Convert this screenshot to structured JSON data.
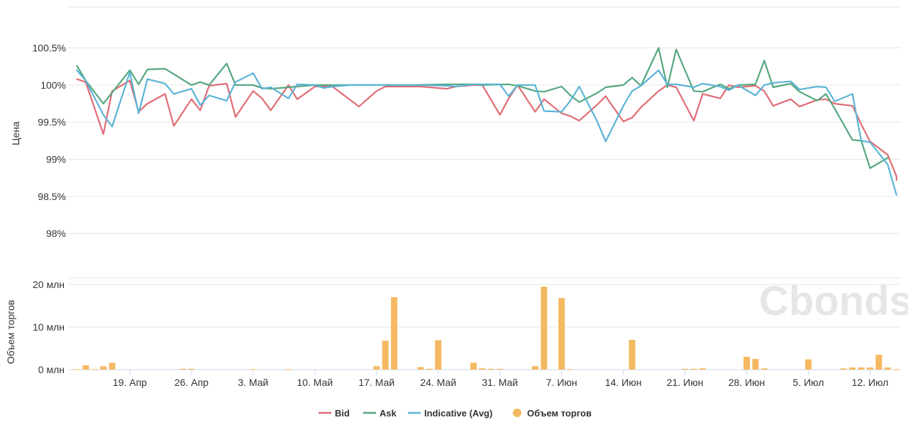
{
  "watermark": "Cbonds",
  "colors": {
    "bid": "#e06c75",
    "ask": "#55a77f",
    "indicative": "#5ab4d6",
    "volume": "#f5b961",
    "grid": "#e6e6e6"
  },
  "chart_data": [
    {
      "type": "line",
      "ylabel": "Цена",
      "ytick_labels": [
        "100.5%",
        "100%",
        "99.5%",
        "99%",
        "98.5%",
        "98%"
      ],
      "yticks": [
        100.5,
        100,
        99.5,
        99,
        98.5,
        98
      ],
      "ylim": [
        97.4,
        101.05
      ],
      "xtick_labels": [
        "19. Апр",
        "26. Апр",
        "3. Май",
        "10. Май",
        "17. Май",
        "24. Май",
        "31. Май",
        "7. Июн",
        "14. Июн",
        "21. Июн",
        "28. Июн",
        "5. Июл",
        "12. Июл"
      ],
      "xtick_days": [
        19,
        26,
        33,
        40,
        47,
        54,
        61,
        68,
        75,
        82,
        89,
        96,
        103
      ],
      "x_days": [
        13,
        14,
        16,
        17,
        19,
        20,
        21,
        23,
        24,
        26,
        27,
        28,
        30,
        31,
        33,
        34,
        35,
        37,
        38,
        40,
        41,
        42,
        44,
        45,
        47,
        48,
        49,
        51,
        52,
        54,
        55,
        56,
        58,
        59,
        61,
        62,
        63,
        65,
        66,
        68,
        69,
        70,
        72,
        73,
        75,
        76,
        77,
        79,
        80,
        81,
        83,
        84,
        86,
        87,
        88,
        90,
        91,
        92,
        94,
        95,
        97,
        98,
        99,
        101,
        102,
        103,
        105,
        106
      ],
      "series": [
        {
          "name": "Bid",
          "values": [
            100.08,
            100.04,
            99.34,
            99.92,
            100.06,
            99.64,
            99.75,
            99.88,
            99.45,
            99.81,
            99.66,
            99.99,
            100.02,
            99.57,
            99.92,
            99.82,
            99.66,
            100.0,
            99.81,
            99.98,
            99.98,
            99.71,
            99.92,
            99.98,
            99.98,
            99.95,
            99.98,
            100.0,
            100.0,
            99.6,
            99.82,
            100.0,
            99.64,
            99.81,
            99.62,
            99.58,
            99.52,
            99.73,
            99.85,
            99.51,
            99.56,
            99.7,
            99.92,
            100.0,
            99.97,
            99.52,
            99.88,
            99.82,
            100.0,
            99.97,
            99.99,
            99.92,
            99.72,
            99.81,
            99.71,
            99.8,
            99.81,
            99.75,
            99.72,
            99.47,
            99.24,
            99.06,
            98.77,
            98.72
          ],
          "x_indices": [
            0,
            1,
            2,
            3,
            4,
            5,
            6,
            7,
            8,
            9,
            10,
            11,
            12,
            13,
            14,
            15,
            16,
            17,
            18,
            19,
            21,
            23,
            24,
            25,
            28,
            30,
            31,
            32,
            33,
            34,
            35,
            36,
            37,
            38,
            39,
            40,
            41,
            42,
            43,
            44,
            45,
            46,
            47,
            48,
            49,
            50,
            51,
            52,
            53,
            54,
            55,
            56,
            57,
            58,
            59,
            60,
            61,
            62,
            63,
            64,
            65,
            66,
            67,
            67
          ]
        },
        {
          "name": "Ask",
          "values": [
            100.26,
            100.06,
            99.75,
            99.9,
            100.2,
            100.01,
            100.21,
            100.22,
            100.0,
            100.04,
            100.0,
            100.29,
            100.0,
            100.0,
            99.96,
            99.95,
            99.97,
            100.0,
            100.0,
            100.0,
            100.0,
            100.01,
            100.01,
            100.01,
            100.0,
            100.01,
            99.99,
            99.92,
            99.91,
            99.98,
            99.86,
            99.77,
            99.89,
            99.97,
            100.0,
            100.1,
            99.99,
            100.5,
            99.97,
            100.48,
            99.92,
            99.91,
            100.01,
            99.95,
            100.0,
            100.01,
            100.33,
            99.97,
            100.02,
            99.91,
            99.79,
            99.88,
            99.68,
            99.26,
            99.25,
            98.88,
            99.02
          ],
          "x_indices": [
            0,
            1,
            2,
            3,
            4,
            5,
            6,
            7,
            9,
            10,
            11,
            12,
            13,
            14,
            15,
            16,
            17,
            19,
            20,
            23,
            27,
            30,
            31,
            32,
            33,
            35,
            36,
            37,
            38,
            39,
            40,
            41,
            42,
            43,
            44,
            45,
            46,
            47,
            48,
            49,
            50,
            51,
            52,
            53,
            54,
            55,
            56,
            57,
            58,
            59,
            60,
            61,
            62,
            63,
            64,
            65,
            66
          ]
        },
        {
          "name": "Indicative (Avg)",
          "values": [
            100.2,
            100.06,
            99.6,
            99.44,
            100.17,
            99.62,
            100.08,
            100.02,
            99.88,
            99.95,
            99.73,
            99.86,
            99.79,
            100.04,
            100.16,
            99.95,
            99.97,
            99.82,
            100.01,
            100.0,
            99.96,
            99.98,
            100.0,
            100.0,
            100.0,
            100.0,
            99.99,
            99.98,
            100.01,
            100.01,
            100.01,
            99.85,
            100.0,
            100.0,
            99.65,
            99.64,
            99.79,
            99.98,
            99.52,
            99.24,
            99.72,
            99.92,
            99.99,
            100.2,
            100.01,
            100.01,
            99.97,
            100.02,
            99.98,
            99.93,
            100.0,
            99.86,
            100.0,
            100.03,
            100.05,
            99.94,
            99.98,
            99.97,
            99.78,
            99.88,
            99.25,
            99.23,
            98.93,
            98.52
          ],
          "x_indices": [
            0,
            1,
            2,
            3,
            4,
            5,
            6,
            7,
            8,
            9,
            10,
            11,
            12,
            13,
            14,
            15,
            16,
            17,
            18,
            19,
            20,
            21,
            22,
            25,
            27,
            28,
            30,
            31,
            32,
            33,
            34,
            35,
            36,
            37,
            38,
            39,
            40,
            41,
            42,
            43,
            44,
            45,
            46,
            47,
            48,
            49,
            50,
            51,
            52,
            53,
            54,
            55,
            56,
            57,
            58,
            59,
            60,
            61,
            62,
            63,
            64,
            65,
            66,
            67
          ]
        }
      ]
    },
    {
      "type": "bar",
      "ylabel": "Объем торгов",
      "ytick_labels": [
        "20 млн",
        "10 млн",
        "0 млн"
      ],
      "yticks": [
        20,
        10,
        0
      ],
      "ylim": [
        0,
        21.5
      ],
      "series": [
        {
          "name": "Объем торгов",
          "x_days": [
            13,
            14,
            15,
            16,
            17,
            25,
            26,
            33,
            37,
            47,
            48,
            49,
            52,
            53,
            54,
            58,
            59,
            60,
            61,
            65,
            66,
            68,
            69,
            76,
            82,
            83,
            84,
            89,
            90,
            91,
            96,
            100,
            101,
            102,
            103,
            104,
            105,
            106
          ],
          "values": [
            0.1,
            1.0,
            0.1,
            0.8,
            1.6,
            0.2,
            0.2,
            0.1,
            0.1,
            0.8,
            6.8,
            17.0,
            0.6,
            0.2,
            6.9,
            1.6,
            0.3,
            0.2,
            0.2,
            0.8,
            19.5,
            16.8,
            0.1,
            7.0,
            0.2,
            0.2,
            0.3,
            3.0,
            2.5,
            0.3,
            2.4,
            0.3,
            0.5,
            0.5,
            0.5,
            3.5,
            0.5,
            0.1
          ]
        }
      ]
    }
  ],
  "legend": [
    {
      "label": "Bid",
      "marker": "line"
    },
    {
      "label": "Ask",
      "marker": "line"
    },
    {
      "label": "Indicative (Avg)",
      "marker": "line"
    },
    {
      "label": "Объем торгов",
      "marker": "dot"
    }
  ]
}
